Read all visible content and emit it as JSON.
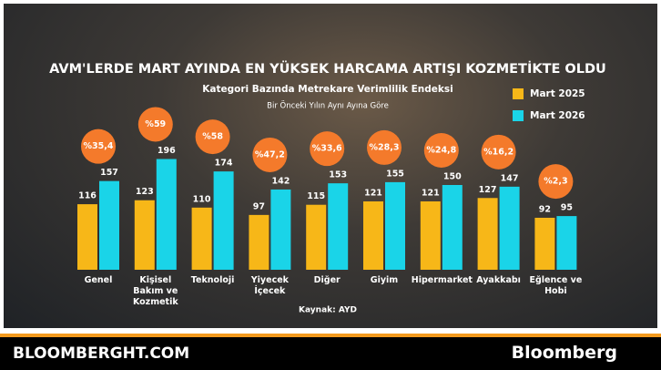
{
  "chart_data": {
    "type": "bar",
    "title": "AVM'LERDE MART AYINDA EN YÜKSEK HARCAMA ARTIŞI KOZMETİKTE OLDU",
    "subtitle": "Kategori Bazında Metrekare Verimlilik Endeksi",
    "note": "Bir Önceki Yılın Aynı Ayına Göre",
    "source": "Kaynak: AYD",
    "categories": [
      "Genel",
      "Kişisel Bakım ve Kozmetik",
      "Teknoloji",
      "Yiyecek İçecek",
      "Diğer",
      "Giyim",
      "Hipermarket",
      "Ayakkabı",
      "Eğlence ve Hobi"
    ],
    "series": [
      {
        "name": "Mart 2025",
        "color": "#f7b718",
        "values": [
          116,
          123,
          110,
          97,
          115,
          121,
          121,
          127,
          92
        ]
      },
      {
        "name": "Mart 2026",
        "color": "#1ad4e8",
        "values": [
          157,
          196,
          174,
          142,
          153,
          155,
          150,
          147,
          95
        ]
      }
    ],
    "changes": {
      "color": "#f47a2b",
      "values": [
        35.4,
        59,
        58,
        47.2,
        33.6,
        28.3,
        24.8,
        16.2,
        2.3
      ],
      "value_labels": [
        "%35,4",
        "%59",
        "%58",
        "%47,2",
        "%33,6",
        "%28,3",
        "%24,8",
        "%16,2",
        "%2,3"
      ]
    }
  },
  "footer": {
    "site": "BLOOMBERGHT.COM",
    "brand": "Bloomberg"
  }
}
